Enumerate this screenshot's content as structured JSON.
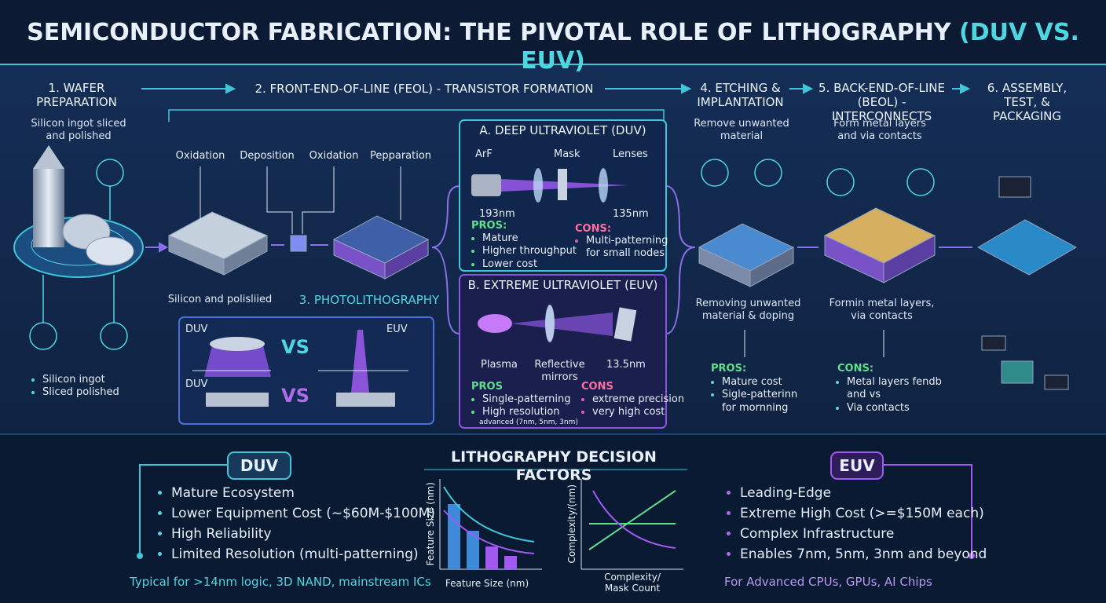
{
  "header": {
    "title": "SEMICONDUCTOR FABRICATION: THE PIVOTAL ROLE OF LITHOGRAPHY",
    "title_highlight": "(DUV VS. EUV)"
  },
  "stages": [
    {
      "title": "1. WAFER PREPARATION",
      "description": "Silicon ingot sliced and polished",
      "bullets": [
        "Silicon ingot",
        "Sliced polished"
      ]
    },
    {
      "title": "2. FRONT-END-OF-LINE (FEOL) - TRANSISTOR FORMATION",
      "steps": [
        "Oxidation",
        "Deposition",
        "Oxidation",
        "Pepparation"
      ],
      "caption": "Silicon and polisliied",
      "sub_title": "3. PHOTOLITHOGRAPHY",
      "comparison": {
        "left_top": "DUV",
        "vs_top": "VS",
        "right_top": "EUV",
        "left_bottom": "DUV",
        "vs_bottom": "VS"
      }
    },
    {
      "title": "4. ETCHING & IMPLANTATION",
      "description": "Remove unwanted material",
      "detail": "Removing unwanted material & doping",
      "list_title": "PROS:",
      "bullets": [
        "Mature cost",
        "Sigle-patterinn for mornning"
      ]
    },
    {
      "title": "5. BACK-END-OF-LINE (BEOL) - INTERCONNECTS",
      "description": "Form metal layers and via contacts",
      "detail": "Formin metal layers, via contacts",
      "list_title": "CONS:",
      "bullets": [
        "Metal layers fendb and vs",
        "Via contacts"
      ]
    },
    {
      "title": "6. ASSEMBLY, TEST, & PACKAGING"
    }
  ],
  "duv_box": {
    "title": "A. DEEP ULTRAVIOLET (DUV)",
    "labels": [
      "ArF",
      "Mask",
      "Lenses"
    ],
    "wavelength": "193nm",
    "wavelength2": "135nm",
    "pros_title": "PROS:",
    "pros": [
      "Mature",
      "Higher throughput",
      "Lower cost"
    ],
    "cons_title": "CONS:",
    "cons": [
      "Multi-patterning for small nodes"
    ]
  },
  "euv_box": {
    "title": "B. EXTREME ULTRAVIOLET (EUV)",
    "labels": [
      "Plasma",
      "Reflective mirrors",
      "13.5nm"
    ],
    "pros_title": "PROS",
    "pros": [
      "Single-patterning",
      "High resolution"
    ],
    "pros_note": "advanced (7nm, 5nm, 3nm)",
    "cons_title": "CONS",
    "cons": [
      "extreme precision",
      "very high cost"
    ]
  },
  "decision": {
    "title": "LITHOGRAPHY DECISION FACTORS",
    "duv": {
      "label": "DUV",
      "bullets": [
        "Mature Ecosystem",
        "Lower Equipment Cost (~$60M-$100M)",
        "High Reliability",
        "Limited Resolution (multi-patterning)"
      ],
      "footer": "Typical for >14nm logic, 3D NAND, mainstream ICs"
    },
    "euv": {
      "label": "EUV",
      "bullets": [
        "Leading-Edge",
        "Extreme High Cost (>=$150M each)",
        "Complex Infrastructure",
        "Enables 7nm, 5nm, 3nm and beyond"
      ],
      "footer": "For Advanced CPUs, GPUs, AI Chips"
    },
    "chart1": {
      "y_label": "Feature Size (nm)",
      "x_label": "Feature Size (nm)"
    },
    "chart2": {
      "y_label": "Complexity/(nm)",
      "x_label": "Complexity/ Mask Count"
    }
  }
}
